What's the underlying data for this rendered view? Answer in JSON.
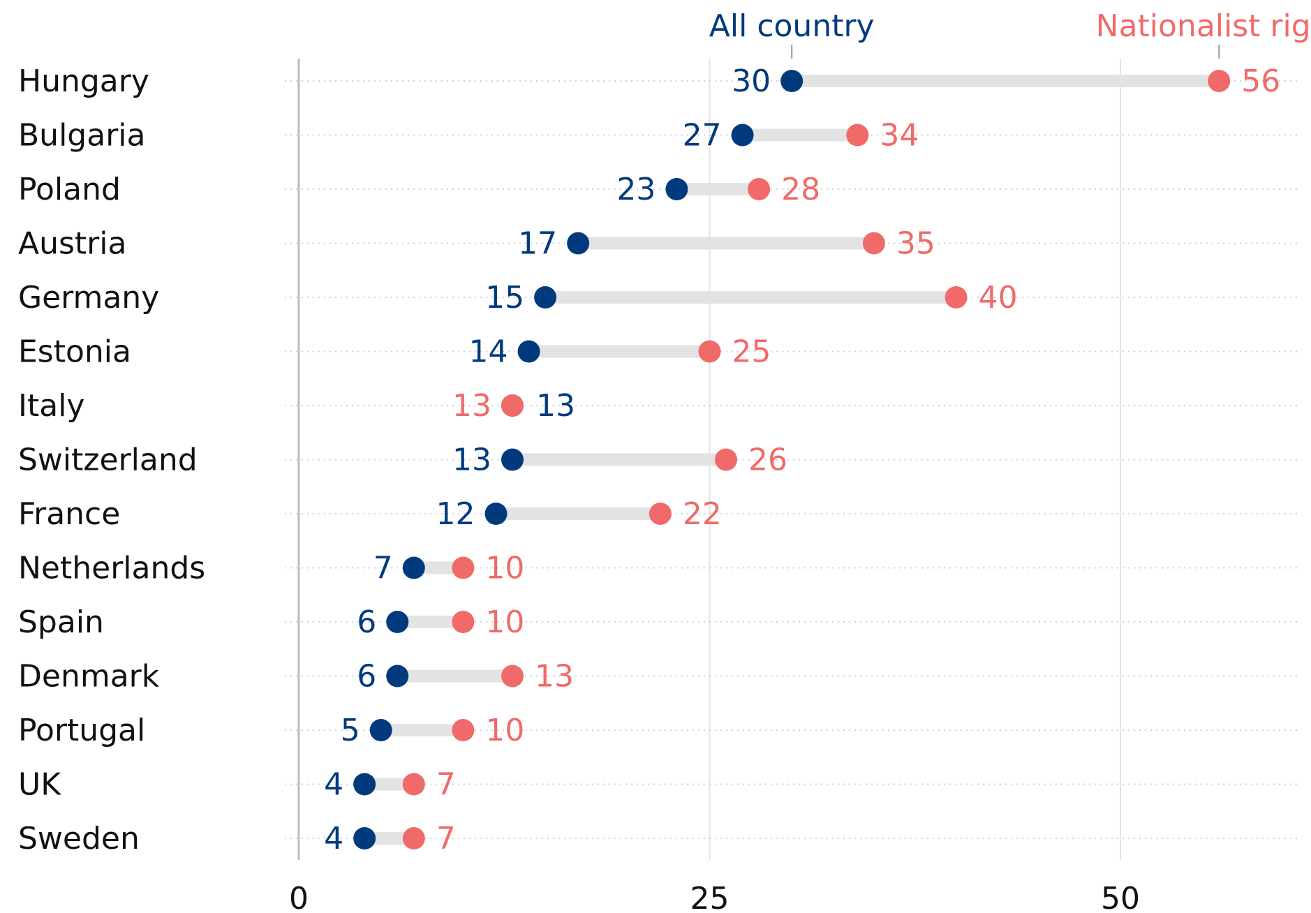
{
  "chart_data": {
    "type": "dot",
    "xlim": [
      0,
      60
    ],
    "x_ticks": [
      0,
      25,
      50
    ],
    "grid": true,
    "legend_position": "top",
    "categories": [
      "Hungary",
      "Bulgaria",
      "Poland",
      "Austria",
      "Germany",
      "Estonia",
      "Italy",
      "Switzerland",
      "France",
      "Netherlands",
      "Spain",
      "Denmark",
      "Portugal",
      "UK",
      "Sweden"
    ],
    "series": [
      {
        "name": "All country",
        "color": "#003a7d",
        "values": [
          30,
          27,
          23,
          17,
          15,
          14,
          13,
          13,
          12,
          7,
          6,
          6,
          5,
          4,
          4
        ]
      },
      {
        "name": "Nationalist right",
        "color": "#f06a6a",
        "values": [
          56,
          34,
          28,
          35,
          40,
          25,
          13,
          26,
          22,
          10,
          10,
          13,
          10,
          7,
          7
        ]
      }
    ]
  }
}
